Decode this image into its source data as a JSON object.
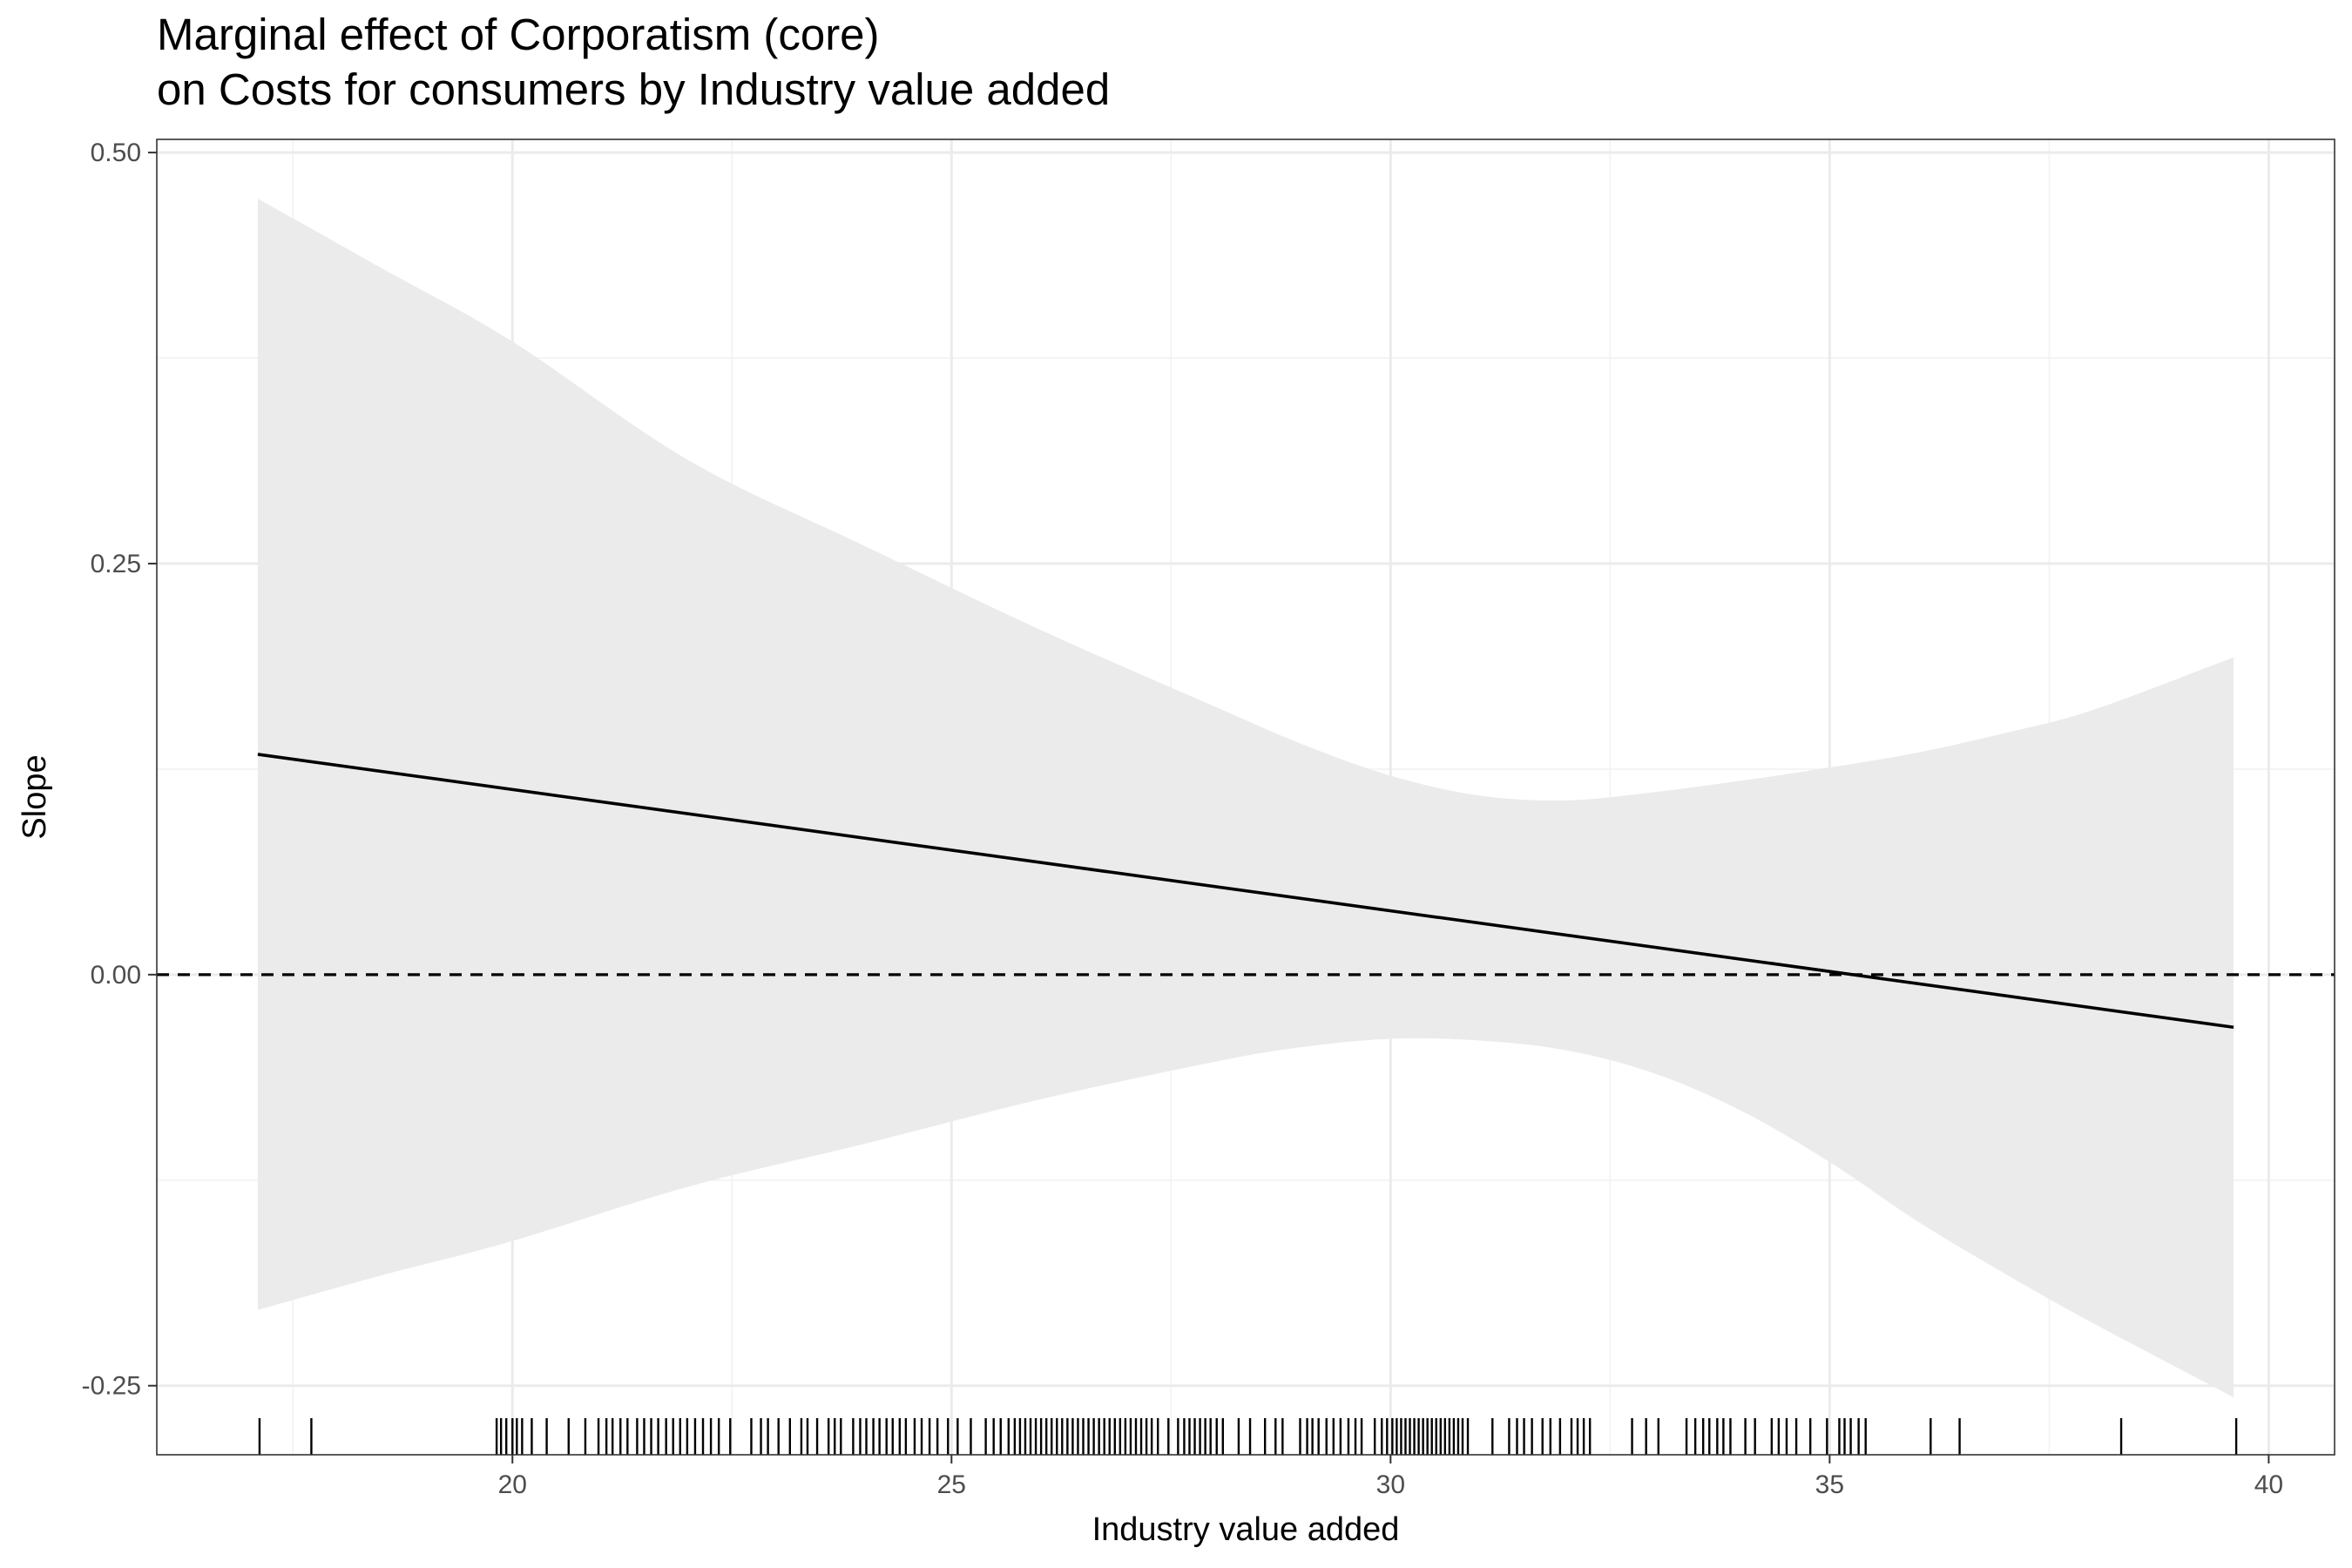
{
  "chart_data": {
    "type": "line",
    "title_lines": [
      "Marginal effect of Corporatism (core)",
      "on Costs for consumers by Industry value added"
    ],
    "xlabel": "Industry value added",
    "ylabel": "Slope",
    "xlim": [
      15.95,
      40.75
    ],
    "ylim": [
      -0.292,
      0.508
    ],
    "x_ticks": [
      20,
      25,
      30,
      35,
      40
    ],
    "x_tick_labels": [
      "20",
      "25",
      "30",
      "35",
      "40"
    ],
    "y_ticks": [
      -0.25,
      0,
      0.25,
      0.5
    ],
    "y_tick_labels": [
      "-0.25",
      "0.00",
      "0.25",
      "0.50"
    ],
    "x_minor_gridlines": [
      17.5,
      22.5,
      27.5,
      32.5,
      37.5
    ],
    "y_minor_gridlines": [
      -0.125,
      0.125,
      0.375
    ],
    "grid": true,
    "reference_line": {
      "y": 0,
      "style": "dashed"
    },
    "series": [
      {
        "x": [
          17.1,
          39.6
        ],
        "y": [
          0.134,
          -0.032
        ]
      }
    ],
    "confidence_band": {
      "x": [
        17.1,
        18.5,
        20.0,
        22.0,
        24.0,
        26.0,
        28.0,
        29.0,
        30.0,
        31.0,
        32.0,
        33.0,
        34.0,
        35.0,
        36.0,
        37.0,
        38.0,
        39.6
      ],
      "upper": [
        0.472,
        0.43,
        0.385,
        0.313,
        0.261,
        0.21,
        0.163,
        0.14,
        0.121,
        0.109,
        0.106,
        0.111,
        0.118,
        0.126,
        0.135,
        0.147,
        0.161,
        0.193
      ],
      "lower": [
        -0.204,
        -0.183,
        -0.162,
        -0.129,
        -0.103,
        -0.076,
        -0.053,
        -0.044,
        -0.039,
        -0.04,
        -0.046,
        -0.06,
        -0.083,
        -0.114,
        -0.15,
        -0.182,
        -0.212,
        -0.257
      ]
    },
    "rug": [
      17.12,
      17.71,
      19.82,
      19.87,
      19.93,
      20.0,
      20.05,
      20.11,
      20.22,
      20.39,
      20.64,
      20.83,
      20.98,
      21.07,
      21.14,
      21.23,
      21.31,
      21.42,
      21.5,
      21.58,
      21.66,
      21.75,
      21.83,
      21.91,
      21.99,
      22.08,
      22.17,
      22.26,
      22.35,
      22.48,
      22.72,
      22.83,
      22.91,
      23.03,
      23.16,
      23.29,
      23.36,
      23.47,
      23.6,
      23.67,
      23.74,
      23.88,
      23.96,
      24.03,
      24.11,
      24.18,
      24.26,
      24.33,
      24.41,
      24.48,
      24.58,
      24.66,
      24.75,
      24.84,
      24.96,
      25.07,
      25.22,
      25.39,
      25.48,
      25.56,
      25.65,
      25.72,
      25.78,
      25.84,
      25.9,
      25.96,
      26.02,
      26.08,
      26.14,
      26.2,
      26.26,
      26.32,
      26.38,
      26.44,
      26.5,
      26.56,
      26.62,
      26.68,
      26.74,
      26.8,
      26.86,
      26.92,
      26.98,
      27.04,
      27.1,
      27.16,
      27.22,
      27.28,
      27.35,
      27.47,
      27.58,
      27.65,
      27.71,
      27.77,
      27.83,
      27.89,
      27.95,
      28.02,
      28.09,
      28.27,
      28.4,
      28.57,
      28.69,
      28.77,
      28.97,
      29.05,
      29.11,
      29.18,
      29.27,
      29.35,
      29.43,
      29.52,
      29.6,
      29.67,
      29.82,
      29.9,
      29.96,
      30.02,
      30.07,
      30.12,
      30.17,
      30.22,
      30.27,
      30.32,
      30.37,
      30.42,
      30.47,
      30.52,
      30.57,
      30.62,
      30.67,
      30.72,
      30.77,
      30.82,
      30.88,
      31.16,
      31.35,
      31.44,
      31.52,
      31.61,
      31.73,
      31.82,
      31.93,
      32.06,
      32.13,
      32.2,
      32.27,
      32.75,
      32.91,
      33.05,
      33.37,
      33.47,
      33.56,
      33.63,
      33.72,
      33.79,
      33.87,
      34.04,
      34.15,
      34.34,
      34.42,
      34.51,
      34.62,
      34.78,
      34.97,
      35.11,
      35.17,
      35.24,
      35.33,
      35.41,
      36.15,
      36.48,
      38.32,
      39.63
    ]
  }
}
